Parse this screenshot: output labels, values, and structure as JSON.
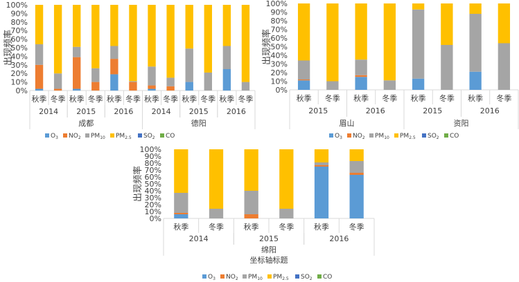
{
  "legend": [
    {
      "base": "O",
      "sub": "3",
      "color": "#5B9BD5"
    },
    {
      "base": "NO",
      "sub": "2",
      "color": "#ED7D31"
    },
    {
      "base": "PM",
      "sub": "10",
      "color": "#A5A5A5"
    },
    {
      "base": "PM",
      "sub": "2.5",
      "color": "#FFC000"
    },
    {
      "base": "SO",
      "sub": "2",
      "color": "#4472C4"
    },
    {
      "base": "CO",
      "sub": "",
      "color": "#70AD47"
    }
  ],
  "chart_data": [
    {
      "type": "bar",
      "stacked": true,
      "ylabel": "出现频率",
      "xlabel": "",
      "ylim": [
        0,
        100
      ],
      "yticks": [
        "0%",
        "10%",
        "20%",
        "30%",
        "40%",
        "50%",
        "60%",
        "70%",
        "80%",
        "90%",
        "100%"
      ],
      "legend_position": "bottom",
      "categories": [
        {
          "city": "成都",
          "year": "2014",
          "season": "秋季"
        },
        {
          "city": "成都",
          "year": "2014",
          "season": "冬季"
        },
        {
          "city": "成都",
          "year": "2015",
          "season": "秋季"
        },
        {
          "city": "成都",
          "year": "2015",
          "season": "冬季"
        },
        {
          "city": "成都",
          "year": "2016",
          "season": "秋季"
        },
        {
          "city": "成都",
          "year": "2016",
          "season": "冬季"
        },
        {
          "city": "德阳",
          "year": "2014",
          "season": "秋季"
        },
        {
          "city": "德阳",
          "year": "2014",
          "season": "冬季"
        },
        {
          "city": "德阳",
          "year": "2015",
          "season": "秋季"
        },
        {
          "city": "德阳",
          "year": "2015",
          "season": "冬季"
        },
        {
          "city": "德阳",
          "year": "2016",
          "season": "秋季"
        },
        {
          "city": "德阳",
          "year": "2016",
          "season": "冬季"
        }
      ],
      "series": [
        {
          "name": "O3",
          "values": [
            2,
            0,
            2,
            0,
            19,
            0,
            2,
            0,
            10,
            0,
            25,
            0
          ]
        },
        {
          "name": "NO2",
          "values": [
            28,
            2,
            37,
            10,
            18,
            10,
            4,
            5,
            0,
            0,
            0,
            0
          ]
        },
        {
          "name": "PM10",
          "values": [
            24,
            18,
            12,
            16,
            15,
            1,
            22,
            10,
            39,
            21,
            27,
            10
          ]
        },
        {
          "name": "PM2.5",
          "values": [
            46,
            80,
            49,
            74,
            48,
            89,
            72,
            85,
            51,
            79,
            48,
            90
          ]
        },
        {
          "name": "SO2",
          "values": [
            0,
            0,
            0,
            0,
            0,
            0,
            0,
            0,
            0,
            0,
            0,
            0
          ]
        },
        {
          "name": "CO",
          "values": [
            0,
            0,
            0,
            0,
            0,
            0,
            0,
            0,
            0,
            0,
            0,
            0
          ]
        }
      ]
    },
    {
      "type": "bar",
      "stacked": true,
      "ylabel": "出现频率",
      "xlabel": "",
      "ylim": [
        0,
        100
      ],
      "yticks": [
        "0%",
        "10%",
        "20%",
        "30%",
        "40%",
        "50%",
        "60%",
        "70%",
        "80%",
        "90%",
        "100%"
      ],
      "legend_position": "bottom",
      "categories": [
        {
          "city": "眉山",
          "year": "2015",
          "season": "秋季"
        },
        {
          "city": "眉山",
          "year": "2015",
          "season": "冬季"
        },
        {
          "city": "眉山",
          "year": "2016",
          "season": "秋季"
        },
        {
          "city": "眉山",
          "year": "2016",
          "season": "冬季"
        },
        {
          "city": "资阳",
          "year": "2015",
          "season": "秋季"
        },
        {
          "city": "资阳",
          "year": "2015",
          "season": "冬季"
        },
        {
          "city": "资阳",
          "year": "2016",
          "season": "秋季"
        },
        {
          "city": "资阳",
          "year": "2016",
          "season": "冬季"
        }
      ],
      "series": [
        {
          "name": "O3",
          "values": [
            11,
            0,
            15,
            0,
            13,
            0,
            21,
            0
          ]
        },
        {
          "name": "NO2",
          "values": [
            1,
            0,
            2,
            0,
            0,
            0,
            0,
            0
          ]
        },
        {
          "name": "PM10",
          "values": [
            22,
            10,
            18,
            11,
            80,
            52,
            67,
            54
          ]
        },
        {
          "name": "PM2.5",
          "values": [
            66,
            90,
            65,
            89,
            7,
            48,
            12,
            46
          ]
        },
        {
          "name": "SO2",
          "values": [
            0,
            0,
            0,
            0,
            0,
            0,
            0,
            0
          ]
        },
        {
          "name": "CO",
          "values": [
            0,
            0,
            0,
            0,
            0,
            0,
            0,
            0
          ]
        }
      ]
    },
    {
      "type": "bar",
      "stacked": true,
      "ylabel": "出现频率",
      "xlabel": "坐标轴标题",
      "ylim": [
        0,
        100
      ],
      "yticks": [
        "0%",
        "10%",
        "20%",
        "30%",
        "40%",
        "50%",
        "60%",
        "70%",
        "80%",
        "90%",
        "100%"
      ],
      "legend_position": "bottom",
      "categories": [
        {
          "city": "绵阳",
          "year": "2014",
          "season": "秋季"
        },
        {
          "city": "绵阳",
          "year": "2014",
          "season": "冬季"
        },
        {
          "city": "绵阳",
          "year": "2015",
          "season": "秋季"
        },
        {
          "city": "绵阳",
          "year": "2015",
          "season": "冬季"
        },
        {
          "city": "绵阳",
          "year": "2016",
          "season": "秋季"
        },
        {
          "city": "绵阳",
          "year": "2016",
          "season": "冬季"
        }
      ],
      "series": [
        {
          "name": "O3",
          "values": [
            6,
            0,
            0,
            0,
            75,
            63
          ]
        },
        {
          "name": "NO2",
          "values": [
            2,
            0,
            6,
            0,
            2,
            3
          ]
        },
        {
          "name": "PM10",
          "values": [
            29,
            14,
            34,
            14,
            4,
            17
          ]
        },
        {
          "name": "PM2.5",
          "values": [
            63,
            86,
            60,
            86,
            19,
            17
          ]
        },
        {
          "name": "SO2",
          "values": [
            0,
            0,
            0,
            0,
            0,
            0
          ]
        },
        {
          "name": "CO",
          "values": [
            0,
            0,
            0,
            0,
            0,
            0
          ]
        }
      ]
    }
  ]
}
